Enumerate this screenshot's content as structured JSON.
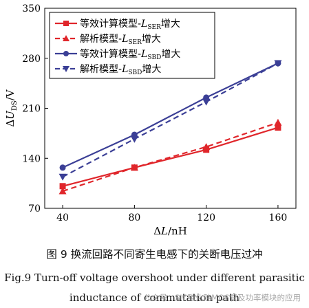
{
  "chart_data": {
    "type": "line",
    "xlabel": "ΔL/nH",
    "ylabel": "ΔU_DS/V",
    "xlim": [
      30,
      170
    ],
    "ylim": [
      70,
      350
    ],
    "xticks": [
      40,
      80,
      120,
      160
    ],
    "yticks": [
      70,
      140,
      210,
      280,
      350
    ],
    "x": [
      40,
      80,
      120,
      160
    ],
    "legend_position": "top-left",
    "grid": false,
    "series": [
      {
        "name": "等效计算模型-L_SER增大",
        "values": [
          101,
          127,
          152,
          183
        ],
        "color": "#e0262b",
        "dash": "solid",
        "marker": "square"
      },
      {
        "name": "解析模型-L_SER增大",
        "values": [
          94,
          127,
          156,
          190
        ],
        "color": "#e0262b",
        "dash": "dashed",
        "marker": "triangle-up"
      },
      {
        "name": "等效计算模型-L_SBD增大",
        "values": [
          127,
          173,
          225,
          273
        ],
        "color": "#3b3f96",
        "dash": "solid",
        "marker": "circle"
      },
      {
        "name": "解析模型-L_SBD增大",
        "values": [
          114,
          167,
          219,
          273
        ],
        "color": "#3b3f96",
        "dash": "dashed",
        "marker": "triangle-down"
      }
    ]
  },
  "captions": {
    "zh": "图 9   换流回路不同寄生电感下的关断电压过冲",
    "en_line1": "Fig.9    Turn-off voltage overshoot under different parasitic",
    "en_line2": "inductance of commutation path"
  },
  "watermark": "公众号 · SIC碳化硅MOS管及功率模块的应用"
}
